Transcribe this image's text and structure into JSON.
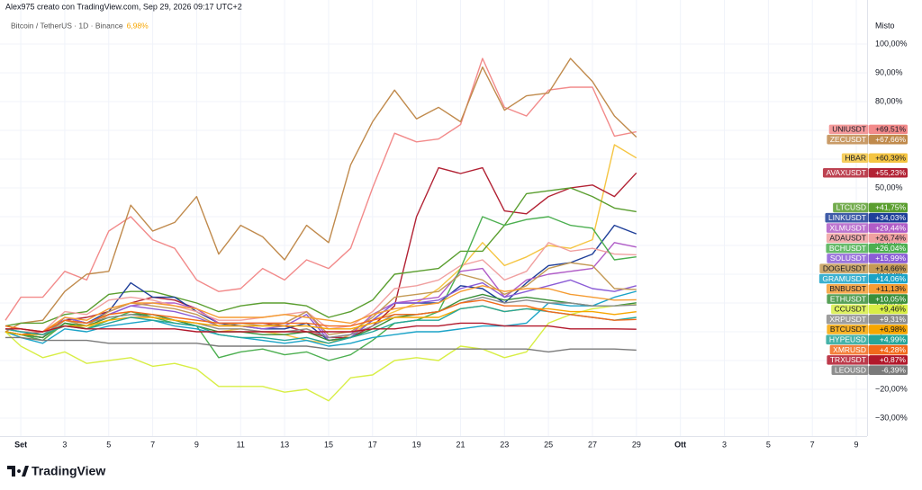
{
  "chart_data": {
    "type": "line",
    "caption": "Alex975 creato con TradingView.com, Sep 29, 2026 09:17 UTC+2",
    "symbol": "Bitcoin / TetherUS · 1D · Binance",
    "symbol_change": "6,98%",
    "scale_mode": "Misto",
    "brand": "TradingView",
    "grid": true,
    "xlim": [
      0.26,
      39.49
    ],
    "ylim": [
      -36.25,
      109.06
    ],
    "xticks": [
      {
        "value": 1,
        "label": "Set"
      },
      3,
      5,
      7,
      9,
      11,
      13,
      15,
      17,
      19,
      21,
      23,
      25,
      27,
      29,
      {
        "value": 31,
        "label": "Ott"
      },
      {
        "value": 33,
        "label": "3"
      },
      {
        "value": 35,
        "label": "5"
      },
      {
        "value": 37,
        "label": "7"
      },
      {
        "value": 39,
        "label": "9"
      }
    ],
    "yticks": [
      {
        "value": 100,
        "label": "100,00%"
      },
      {
        "value": 90,
        "label": "90,00%"
      },
      {
        "value": 80,
        "label": "80,00%"
      },
      {
        "value": 70,
        "label": "70,00%"
      },
      {
        "value": 60,
        "label": "60,00%"
      },
      {
        "value": 50,
        "label": "50,00%"
      },
      {
        "value": 40,
        "label": "40,00%"
      },
      {
        "value": 30,
        "label": "30,00%"
      },
      {
        "value": 20,
        "label": "20,00%"
      },
      {
        "value": 10,
        "label": "10,00%"
      },
      {
        "value": 0,
        "label": "0,00%"
      },
      {
        "value": -10,
        "label": "−10,00%"
      },
      {
        "value": -20,
        "label": "−20,00%"
      },
      {
        "value": -30,
        "label": "−30,00%"
      }
    ],
    "x": [
      0.3,
      1,
      2,
      3,
      4,
      5,
      6,
      7,
      8,
      9,
      10,
      11,
      12,
      13,
      14,
      15,
      16,
      17,
      18,
      19,
      20,
      21,
      22,
      23,
      24,
      25,
      26,
      27,
      28,
      29
    ],
    "series": [
      {
        "name": "UNIUSDT",
        "color": "#f28a8a",
        "value_label": "+69,51%",
        "values": [
          4,
          12,
          12,
          21,
          18,
          35,
          40,
          32,
          29,
          18,
          14,
          15,
          22,
          18,
          25,
          22,
          29,
          50,
          69,
          66,
          67,
          72,
          95,
          78,
          75,
          84,
          85,
          85,
          68,
          69.51
        ]
      },
      {
        "name": "ZECUSDT",
        "color": "#c08a4c",
        "value_label": "+67,66%",
        "values": [
          0,
          3,
          4,
          14,
          20,
          21,
          44,
          35,
          38,
          47,
          27,
          37,
          33,
          25,
          37,
          31,
          58,
          73,
          84,
          74,
          78,
          73,
          92,
          77,
          82,
          83,
          95,
          87,
          75,
          67.66
        ]
      },
      {
        "name": "HBAR",
        "color": "#f5c542",
        "value_label": "+60,39%",
        "values": [
          0,
          -2,
          -3,
          3,
          1,
          6,
          7,
          5,
          4,
          2,
          0,
          1,
          0,
          -1,
          -3,
          -4,
          -1,
          4,
          7,
          10,
          15,
          22,
          31,
          23,
          26,
          30,
          29,
          32,
          65,
          60.39
        ]
      },
      {
        "name": "AVAXUSDT",
        "color": "#b22234",
        "value_label": "+55,23%",
        "values": [
          0,
          -1,
          0,
          4,
          5,
          7,
          10,
          12,
          11,
          8,
          3,
          3,
          3,
          2,
          0,
          -2,
          -2,
          2,
          9,
          40,
          57,
          55,
          57,
          42,
          41,
          47,
          50,
          51,
          47,
          55.23
        ]
      },
      {
        "name": "LTCUSD",
        "color": "#5a9e2f",
        "value_label": "+41,75%",
        "values": [
          2,
          3,
          3,
          6,
          7,
          13,
          14,
          14,
          12,
          10,
          7,
          9,
          10,
          10,
          9,
          5,
          7,
          11,
          20,
          21,
          22,
          28,
          28,
          37,
          48,
          49,
          50,
          47,
          43,
          41.75
        ]
      },
      {
        "name": "LINKUSDT",
        "color": "#1f3f99",
        "value_label": "+34,03%",
        "values": [
          0,
          -1,
          -2,
          5,
          3,
          7,
          17,
          12,
          12,
          7,
          3,
          2,
          1,
          1,
          3,
          -3,
          -2,
          4,
          10,
          10,
          10,
          16,
          15,
          10,
          17,
          23,
          24,
          27,
          37,
          34.03
        ]
      },
      {
        "name": "XLMUSDT",
        "color": "#b05cc7",
        "value_label": "+29,44%",
        "values": [
          0,
          -1,
          -2,
          4,
          3,
          6,
          9,
          10,
          10,
          8,
          3,
          3,
          3,
          3,
          7,
          -2,
          -1,
          6,
          10,
          11,
          12,
          21,
          22,
          12,
          18,
          20,
          21,
          22,
          31,
          29.44
        ]
      },
      {
        "name": "ADAUSDT",
        "color": "#f0a0a0",
        "value_label": "+26,74%",
        "values": [
          1,
          0,
          0,
          7,
          6,
          11,
          12,
          11,
          9,
          7,
          4,
          4,
          5,
          6,
          7,
          1,
          2,
          7,
          15,
          16,
          18,
          23,
          25,
          18,
          21,
          31,
          28,
          29,
          27,
          26.74
        ]
      },
      {
        "name": "BCHUSDT",
        "color": "#4caf50",
        "value_label": "+26,04%",
        "values": [
          0,
          -1,
          -3,
          3,
          1,
          4,
          7,
          5,
          3,
          2,
          -9,
          -7,
          -6,
          -8,
          -7,
          -10,
          -8,
          -3,
          3,
          4,
          7,
          22,
          40,
          37,
          39,
          40,
          37,
          36,
          25,
          26.04
        ]
      },
      {
        "name": "SOLUSDT",
        "color": "#8b5cd6",
        "value_label": "+15,99%",
        "values": [
          0,
          -1,
          -2,
          5,
          3,
          6,
          9,
          8,
          7,
          5,
          2,
          2,
          1,
          2,
          6,
          -3,
          -2,
          4,
          10,
          10,
          11,
          15,
          17,
          12,
          14,
          16,
          18,
          15,
          14,
          15.99
        ]
      },
      {
        "name": "DOGEUSDT",
        "color": "#c49a55",
        "value_label": "+14,66%",
        "values": [
          0,
          -1,
          -2,
          4,
          2,
          7,
          10,
          9,
          8,
          6,
          2,
          3,
          2,
          3,
          7,
          -1,
          0,
          5,
          12,
          13,
          14,
          20,
          18,
          13,
          16,
          22,
          24,
          23,
          15,
          14.66
        ]
      },
      {
        "name": "GRAMUSDT",
        "color": "#1aa3c7",
        "value_label": "+14,06%",
        "values": [
          0,
          -2,
          -4,
          1,
          0,
          2,
          3,
          4,
          2,
          1,
          -1,
          -2,
          -3,
          -4,
          -3,
          -5,
          -4,
          -2,
          -1,
          0,
          0,
          1,
          2,
          2,
          3,
          10,
          9,
          9,
          12,
          14.06
        ]
      },
      {
        "name": "BNBUSDT",
        "color": "#f59c32",
        "value_label": "+11,13%",
        "values": [
          2,
          1,
          0,
          5,
          4,
          8,
          10,
          10,
          9,
          8,
          5,
          5,
          5,
          6,
          5,
          4,
          3,
          6,
          8,
          9,
          10,
          14,
          16,
          14,
          15,
          15,
          13,
          12,
          11,
          11.13
        ]
      },
      {
        "name": "ETHUSDT",
        "color": "#3a8f3a",
        "value_label": "+10,05%",
        "values": [
          0,
          -1,
          -2,
          3,
          2,
          5,
          6,
          6,
          4,
          2,
          0,
          0,
          -1,
          -1,
          0,
          -3,
          -2,
          1,
          5,
          6,
          7,
          11,
          13,
          11,
          12,
          11,
          10,
          9,
          9,
          10.05
        ]
      },
      {
        "name": "CCUSDT",
        "color": "#d8ee45",
        "value_label": "+9,46%",
        "values": [
          0,
          -5,
          -9,
          -7,
          -11,
          -10,
          -9,
          -12,
          -11,
          -13,
          -19,
          -19,
          -19,
          -21,
          -20,
          -24,
          -16,
          -15,
          -10,
          -9,
          -10,
          -5,
          -6,
          -9,
          -7,
          3,
          6,
          8,
          9,
          9.46
        ]
      },
      {
        "name": "XRPUSDT",
        "color": "#8c8c8c",
        "value_label": "+9,31%",
        "values": [
          1,
          0,
          -1,
          4,
          3,
          5,
          6,
          5,
          4,
          3,
          1,
          1,
          0,
          0,
          1,
          -2,
          -1,
          2,
          6,
          6,
          7,
          10,
          12,
          10,
          11,
          10,
          10,
          9,
          9,
          9.31
        ]
      },
      {
        "name": "BTCUSDT",
        "color": "#f7a600",
        "value_label": "+6,98%",
        "values": [
          0,
          -1,
          -1,
          2,
          2,
          4,
          5,
          5,
          4,
          3,
          2,
          2,
          2,
          2,
          2,
          1,
          1,
          3,
          5,
          5,
          5,
          8,
          9,
          7,
          8,
          8,
          7,
          7,
          6,
          6.98
        ]
      },
      {
        "name": "HYPEUSD",
        "color": "#26a69a",
        "value_label": "+4,99%",
        "values": [
          1,
          0,
          -1,
          2,
          1,
          3,
          5,
          4,
          3,
          2,
          -1,
          -2,
          -2,
          -3,
          -2,
          -4,
          -2,
          0,
          3,
          4,
          4,
          8,
          9,
          7,
          8,
          7,
          6,
          5,
          4,
          4.99
        ]
      },
      {
        "name": "XMRUSD",
        "color": "#f26a1b",
        "value_label": "+4,28%",
        "values": [
          2,
          1,
          0,
          4,
          3,
          6,
          7,
          6,
          5,
          4,
          3,
          3,
          3,
          3,
          3,
          2,
          2,
          4,
          6,
          6,
          7,
          10,
          11,
          9,
          9,
          7,
          6,
          5,
          4,
          4.28
        ]
      },
      {
        "name": "TRXUSDT",
        "color": "#b2182b",
        "value_label": "+0,87%",
        "values": [
          1,
          1,
          0,
          2,
          1,
          1,
          1,
          1,
          1,
          0,
          0,
          0,
          0,
          0,
          0,
          0,
          0,
          1,
          1,
          2,
          2,
          3,
          3,
          2,
          2,
          2,
          1,
          1,
          1,
          0.87
        ]
      },
      {
        "name": "LEOUSD",
        "color": "#7a7a7a",
        "value_label": "-6,39%",
        "values": [
          -2,
          -2,
          -3,
          -3,
          -3,
          -4,
          -4,
          -4,
          -4,
          -4,
          -5,
          -5,
          -5,
          -5,
          -5,
          -6,
          -6,
          -6,
          -6,
          -6,
          -6,
          -6,
          -6,
          -6,
          -6,
          -7,
          -6,
          -6,
          -6,
          -6.39
        ]
      }
    ]
  }
}
